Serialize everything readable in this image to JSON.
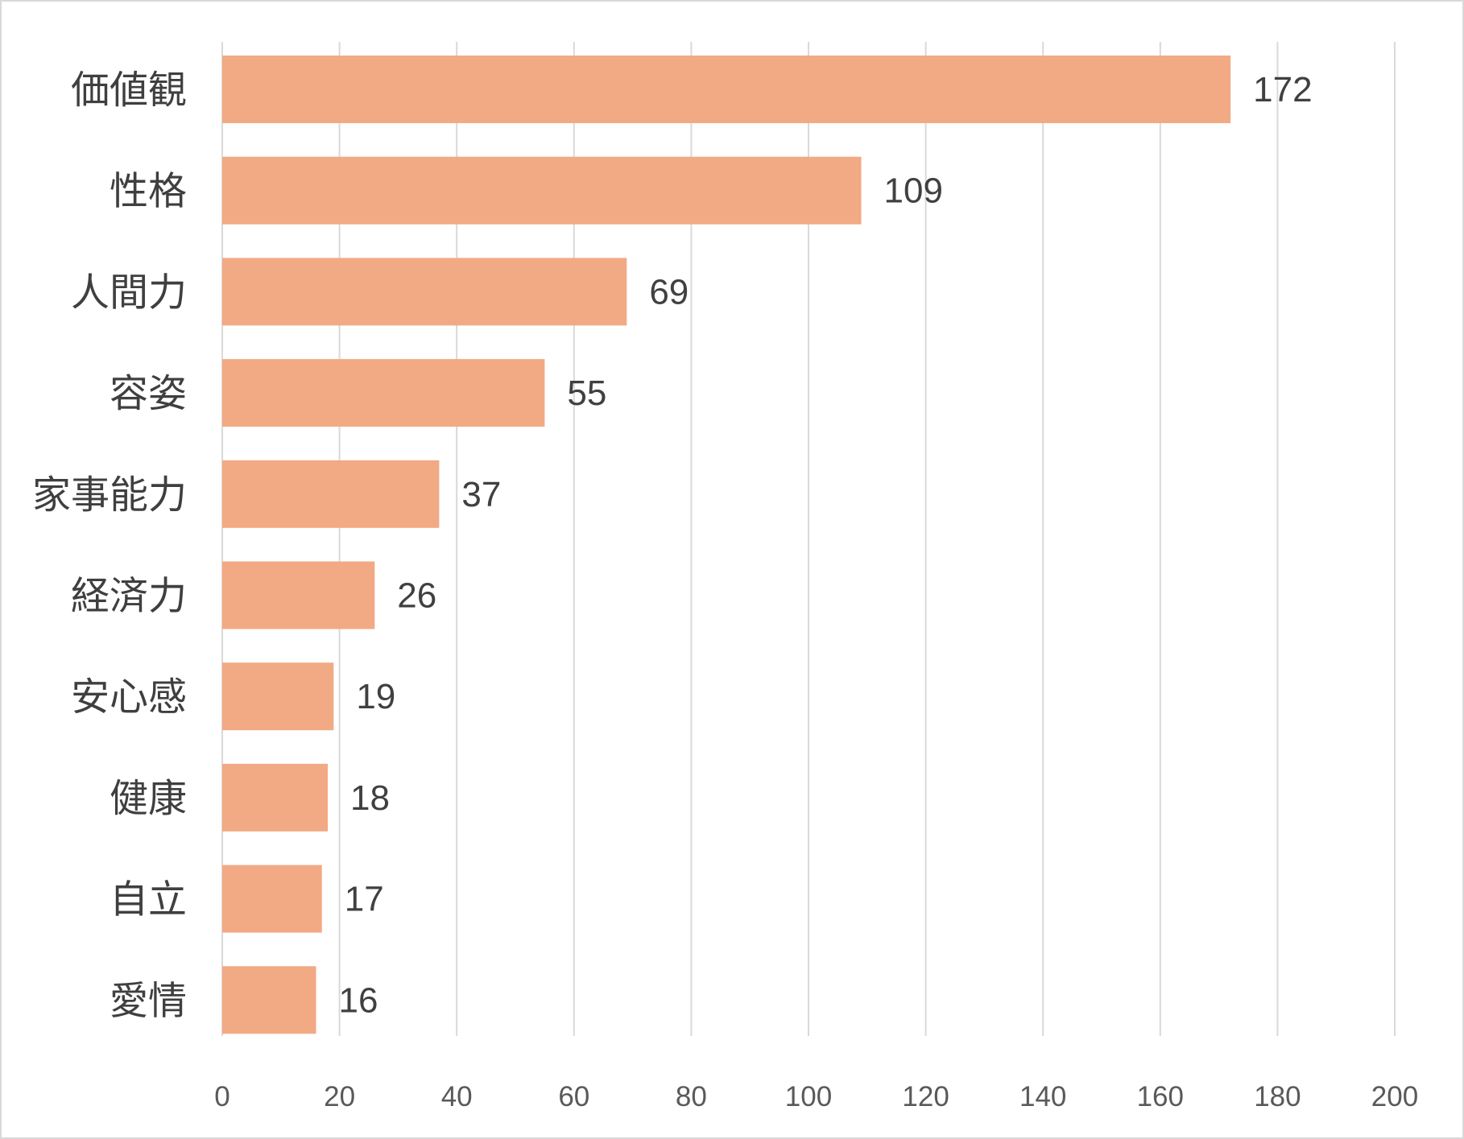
{
  "chart_data": {
    "type": "bar",
    "orientation": "horizontal",
    "categories": [
      "価値観",
      "性格",
      "人間力",
      "容姿",
      "家事能力",
      "経済力",
      "安心感",
      "健康",
      "自立",
      "愛情"
    ],
    "values": [
      172,
      109,
      69,
      55,
      37,
      26,
      19,
      18,
      17,
      16
    ],
    "data_labels": [
      "172",
      "109",
      "69",
      "55",
      "37",
      "26",
      "19",
      "18",
      "17",
      "16"
    ],
    "xlim": [
      0,
      200
    ],
    "xticks": [
      "0",
      "20",
      "40",
      "60",
      "80",
      "100",
      "120",
      "140",
      "160",
      "180",
      "200"
    ],
    "title": "",
    "xlabel": "",
    "ylabel": "",
    "grid": "vertical",
    "legend": "none",
    "bar_color": "#F2AA84",
    "grid_color": "#D9D9D9"
  }
}
